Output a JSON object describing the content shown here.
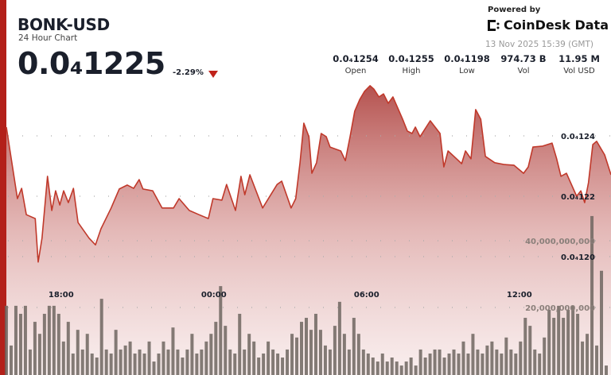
{
  "header": {
    "title": "BONK-USD",
    "subtitle": "24 Hour Chart",
    "price": "0.0₄1225",
    "change": "-2.29%",
    "change_direction": "down"
  },
  "branding": {
    "powered_by": "Powered by",
    "name": "CoinDesk Data",
    "timestamp": "13 Nov 2025 15:39 (GMT)"
  },
  "stats": [
    {
      "value": "0.0₄1254",
      "label": "Open"
    },
    {
      "value": "0.0₄1255",
      "label": "High"
    },
    {
      "value": "0.0₄1198",
      "label": "Low"
    },
    {
      "value": "974.73 B",
      "label": "Vol"
    },
    {
      "value": "11.95 M",
      "label": "Vol USD"
    }
  ],
  "colors": {
    "accent": "#b3201a",
    "line": "#c0392b",
    "fill_top": "#b5524f",
    "volume_bar": "#6e6660",
    "down": "#c0221a"
  },
  "chart_data": {
    "type": "line",
    "x_ticks": [
      "18:00",
      "00:00",
      "06:00",
      "12:00"
    ],
    "price_ticks": [
      {
        "value": 1.24e-05,
        "label": "0.0₄124"
      },
      {
        "value": 1.22e-05,
        "label": "0.0₄122"
      },
      {
        "value": 1.2e-05,
        "label": "0.0₄120"
      }
    ],
    "volume_ticks": [
      {
        "value": 40000000000,
        "label": "40,000,000,000"
      },
      {
        "value": 20000000000,
        "label": "20,000,000,000"
      }
    ],
    "grid": "dotted horizontal",
    "price_series": {
      "times": [
        "15:51",
        "16:17",
        "16:27",
        "16:38",
        "16:59",
        "17:06",
        "17:15",
        "17:28",
        "17:38",
        "17:47",
        "17:57",
        "18:06",
        "18:17",
        "18:29",
        "18:40",
        "19:06",
        "19:21",
        "19:34",
        "19:58",
        "20:17",
        "20:36",
        "20:51",
        "21:04",
        "21:13",
        "21:36",
        "21:58",
        "22:25",
        "22:38",
        "23:02",
        "23:25",
        "23:47",
        "23:58",
        "00:19",
        "00:30",
        "00:51",
        "01:04",
        "01:13",
        "01:25",
        "01:55",
        "02:29",
        "02:40",
        "03:02",
        "03:13",
        "03:23",
        "03:32",
        "03:44",
        "03:51",
        "04:02",
        "04:13",
        "04:25",
        "04:34",
        "04:59",
        "05:10",
        "05:21",
        "05:32",
        "05:44",
        "05:55",
        "06:08",
        "06:17",
        "06:29",
        "06:40",
        "06:51",
        "07:02",
        "07:25",
        "07:36",
        "07:47",
        "07:55",
        "08:06",
        "08:30",
        "08:53",
        "09:02",
        "09:12",
        "09:32",
        "09:44",
        "09:53",
        "10:06",
        "10:17",
        "10:29",
        "10:40",
        "11:02",
        "11:25",
        "11:47",
        "12:10",
        "12:21",
        "12:32",
        "12:55",
        "13:17",
        "13:28",
        "13:38",
        "13:51",
        "14:15",
        "14:25",
        "14:34",
        "14:43",
        "14:53",
        "15:02",
        "15:21",
        "15:36"
      ],
      "values": [
        1.2429e-05,
        1.2192e-05,
        1.2226e-05,
        1.2139e-05,
        1.2126e-05,
        1.1982e-05,
        1.2061e-05,
        1.2266e-05,
        1.2153e-05,
        1.2218e-05,
        1.2171e-05,
        1.2218e-05,
        1.2179e-05,
        1.2226e-05,
        1.2113e-05,
        1.2061e-05,
        1.2039e-05,
        1.2092e-05,
        1.2161e-05,
        1.2224e-05,
        1.2237e-05,
        1.2226e-05,
        1.2255e-05,
        1.2224e-05,
        1.2218e-05,
        1.2161e-05,
        1.2161e-05,
        1.2192e-05,
        1.2153e-05,
        1.2139e-05,
        1.2126e-05,
        1.2192e-05,
        1.2187e-05,
        1.2239e-05,
        1.2153e-05,
        1.2266e-05,
        1.2205e-05,
        1.2271e-05,
        1.2161e-05,
        1.2239e-05,
        1.225e-05,
        1.2161e-05,
        1.2192e-05,
        1.2311e-05,
        1.2442e-05,
        1.2397e-05,
        1.2276e-05,
        1.2311e-05,
        1.2408e-05,
        1.2397e-05,
        1.2363e-05,
        1.235e-05,
        1.2318e-05,
        1.2397e-05,
        1.2482e-05,
        1.2521e-05,
        1.2547e-05,
        1.2566e-05,
        1.2555e-05,
        1.2529e-05,
        1.2539e-05,
        1.2508e-05,
        1.2529e-05,
        1.2455e-05,
        1.2416e-05,
        1.2408e-05,
        1.2429e-05,
        1.2397e-05,
        1.245e-05,
        1.2408e-05,
        1.2297e-05,
        1.235e-05,
        1.2324e-05,
        1.2308e-05,
        1.235e-05,
        1.2324e-05,
        1.2487e-05,
        1.2455e-05,
        1.2332e-05,
        1.2311e-05,
        1.2305e-05,
        1.2303e-05,
        1.2276e-05,
        1.2297e-05,
        1.2363e-05,
        1.2366e-05,
        1.2376e-05,
        1.2324e-05,
        1.2266e-05,
        1.2276e-05,
        1.22e-05,
        1.2218e-05,
        1.2179e-05,
        1.2245e-05,
        1.2371e-05,
        1.2382e-05,
        1.2337e-05,
        1.2271e-05
      ]
    },
    "volume_series": {
      "values": [
        20500000000.0,
        8600000000.0,
        20500000000.0,
        18100000000.0,
        20500000000.0,
        7400000000.0,
        15700000000.0,
        12100000000.0,
        18100000000.0,
        20500000000.0,
        20500000000.0,
        18100000000.0,
        9800000000.0,
        15700000000.0,
        6200000000.0,
        13300000000.0,
        7400000000.0,
        12100000000.0,
        6200000000.0,
        5000000000.0,
        22600000000.0,
        7400000000.0,
        6200000000.0,
        13300000000.0,
        7400000000.0,
        8600000000.0,
        9800000000.0,
        6200000000.0,
        7400000000.0,
        6200000000.0,
        9800000000.0,
        3800000000.0,
        6200000000.0,
        9800000000.0,
        7400000000.0,
        14000000000.0,
        7400000000.0,
        5000000000.0,
        7400000000.0,
        12100000000.0,
        6200000000.0,
        7400000000.0,
        9800000000.0,
        12100000000.0,
        15700000000.0,
        26400000000.0,
        14500000000.0,
        7400000000.0,
        6200000000.0,
        18100000000.0,
        7400000000.0,
        12100000000.0,
        9800000000.0,
        5000000000.0,
        6200000000.0,
        9800000000.0,
        7400000000.0,
        6200000000.0,
        5000000000.0,
        7400000000.0,
        12100000000.0,
        11000000000.0,
        15700000000.0,
        16900000000.0,
        13300000000.0,
        18100000000.0,
        13300000000.0,
        8600000000.0,
        7400000000.0,
        14500000000.0,
        21700000000.0,
        12100000000.0,
        7400000000.0,
        16900000000.0,
        12100000000.0,
        7400000000.0,
        6200000000.0,
        5000000000.0,
        3800000000.0,
        6200000000.0,
        3800000000.0,
        5000000000.0,
        3800000000.0,
        2600000000.0,
        3800000000.0,
        5000000000.0,
        2600000000.0,
        7400000000.0,
        5000000000.0,
        6200000000.0,
        7400000000.0,
        7400000000.0,
        5000000000.0,
        6200000000.0,
        7400000000.0,
        6200000000.0,
        9800000000.0,
        6200000000.0,
        12100000000.0,
        7400000000.0,
        6200000000.0,
        8600000000.0,
        9800000000.0,
        7400000000.0,
        6200000000.0,
        11000000000.0,
        7400000000.0,
        6200000000.0,
        9800000000.0,
        16900000000.0,
        14500000000.0,
        7400000000.0,
        6200000000.0,
        11000000000.0,
        19300000000.0,
        16900000000.0,
        20500000000.0,
        16900000000.0,
        19300000000.0,
        20500000000.0,
        18100000000.0,
        9800000000.0,
        12100000000.0,
        47400000000.0,
        8600000000.0,
        31000000000.0,
        2600000000.0
      ]
    }
  }
}
